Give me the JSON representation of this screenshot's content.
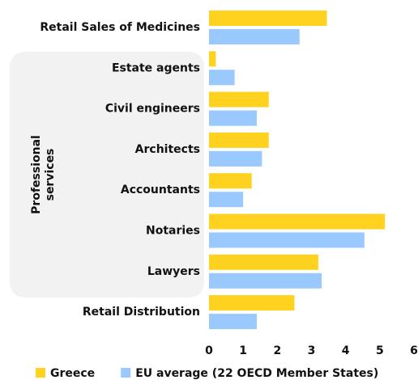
{
  "chart_data": {
    "type": "barh",
    "categories": [
      "Retail Sales of Medicines",
      "Estate agents",
      "Civil engineers",
      "Architects",
      "Accountants",
      "Notaries",
      "Lawyers",
      "Retail Distribution"
    ],
    "group_label": [
      "Professional",
      "services"
    ],
    "series": [
      {
        "name": "Greece",
        "color": "#ffd21f",
        "values": [
          3.45,
          0.2,
          1.75,
          1.75,
          1.25,
          5.15,
          3.2,
          2.5
        ]
      },
      {
        "name": "EU average (22 OECD Member States)",
        "color": "#99c9ff",
        "values": [
          2.65,
          0.75,
          1.4,
          1.55,
          1.0,
          4.55,
          3.3,
          1.4
        ]
      }
    ],
    "xlim": [
      0,
      6
    ],
    "xticks": [
      0,
      1,
      2,
      3,
      4,
      5,
      6
    ],
    "grid": false,
    "legend": "bottom"
  }
}
